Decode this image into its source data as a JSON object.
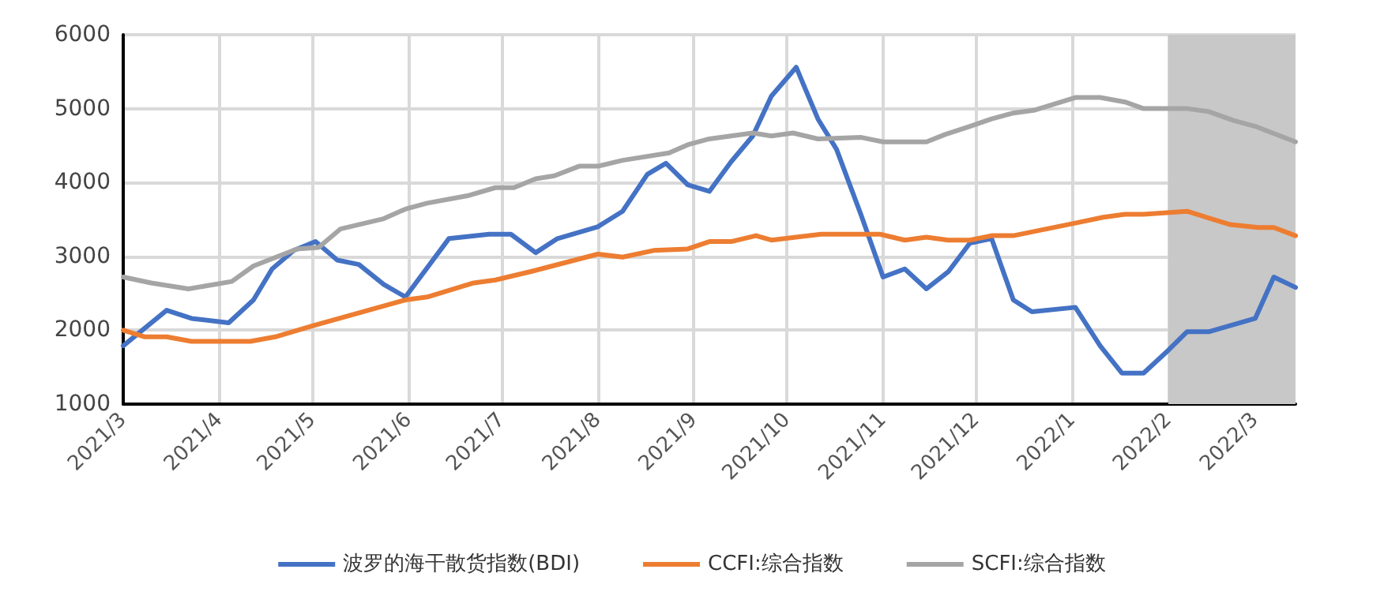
{
  "chart_data": {
    "type": "line",
    "xlim": [
      "2021-03-01",
      "2022-03-14"
    ],
    "ylim": [
      1000,
      6000
    ],
    "yticks": [
      1000,
      2000,
      3000,
      4000,
      5000,
      6000
    ],
    "xticks": [
      {
        "value": "2021-03-01",
        "label": "2021/3"
      },
      {
        "value": "2021-04-01",
        "label": "2021/4"
      },
      {
        "value": "2021-05-01",
        "label": "2021/5"
      },
      {
        "value": "2021-06-01",
        "label": "2021/6"
      },
      {
        "value": "2021-07-01",
        "label": "2021/7"
      },
      {
        "value": "2021-08-01",
        "label": "2021/8"
      },
      {
        "value": "2021-09-01",
        "label": "2021/9"
      },
      {
        "value": "2021-10-01",
        "label": "2021/10"
      },
      {
        "value": "2021-11-01",
        "label": "2021/11"
      },
      {
        "value": "2021-12-01",
        "label": "2021/12"
      },
      {
        "value": "2022-01-01",
        "label": "2022/1"
      },
      {
        "value": "2022-02-01",
        "label": "2022/2"
      },
      {
        "value": "2022-03-01",
        "label": "2022/3"
      }
    ],
    "grid": true,
    "legend": "bottom",
    "marker": "none",
    "line_style": "solid",
    "bands": [
      {
        "axis": "x",
        "from": "2022-02-01",
        "to": "2022-03-14",
        "color": "#c8c8c8"
      }
    ],
    "series": [
      {
        "name": "波罗的海干散货指数(BDI)",
        "color": "#4472c4",
        "x": [
          "2021-03-01",
          "2021-03-15",
          "2021-03-23",
          "2021-04-04",
          "2021-04-12",
          "2021-04-18",
          "2021-04-25",
          "2021-05-02",
          "2021-05-09",
          "2021-05-16",
          "2021-05-24",
          "2021-05-31",
          "2021-06-14",
          "2021-06-27",
          "2021-07-04",
          "2021-07-12",
          "2021-07-19",
          "2021-08-01",
          "2021-08-09",
          "2021-08-17",
          "2021-08-23",
          "2021-08-30",
          "2021-09-06",
          "2021-09-13",
          "2021-09-20",
          "2021-09-26",
          "2021-10-04",
          "2021-10-11",
          "2021-10-17",
          "2021-10-25",
          "2021-11-01",
          "2021-11-08",
          "2021-11-15",
          "2021-11-22",
          "2021-11-29",
          "2021-12-06",
          "2021-12-13",
          "2021-12-19",
          "2022-01-02",
          "2022-01-10",
          "2022-01-17",
          "2022-01-24",
          "2022-02-01",
          "2022-02-07",
          "2022-02-14",
          "2022-03-01",
          "2022-03-07",
          "2022-03-14"
        ],
        "values": [
          1790,
          2270,
          2160,
          2100,
          2410,
          2830,
          3080,
          3200,
          2950,
          2890,
          2620,
          2450,
          3240,
          3300,
          3300,
          3050,
          3240,
          3400,
          3610,
          4110,
          4260,
          3970,
          3880,
          4280,
          4630,
          5170,
          5560,
          4860,
          4450,
          3550,
          2720,
          2830,
          2560,
          2790,
          3180,
          3240,
          2410,
          2250,
          2310,
          1790,
          1420,
          1420,
          1730,
          1980,
          1980,
          2160,
          2720,
          2580
        ]
      },
      {
        "name": "CCFI:综合指数",
        "color": "#ed7d31",
        "x": [
          "2021-03-01",
          "2021-03-08",
          "2021-03-15",
          "2021-03-23",
          "2021-04-11",
          "2021-04-19",
          "2021-05-01",
          "2021-05-31",
          "2021-06-07",
          "2021-06-22",
          "2021-06-29",
          "2021-07-11",
          "2021-08-01",
          "2021-08-09",
          "2021-08-19",
          "2021-08-30",
          "2021-09-06",
          "2021-09-13",
          "2021-09-21",
          "2021-09-26",
          "2021-10-12",
          "2021-10-31",
          "2021-11-08",
          "2021-11-15",
          "2021-11-22",
          "2021-11-29",
          "2021-12-06",
          "2021-12-13",
          "2022-01-02",
          "2022-01-11",
          "2022-01-18",
          "2022-01-24",
          "2022-02-07",
          "2022-02-21",
          "2022-03-02",
          "2022-03-07",
          "2022-03-14"
        ],
        "values": [
          2000,
          1910,
          1910,
          1850,
          1850,
          1910,
          2060,
          2410,
          2450,
          2640,
          2680,
          2800,
          3030,
          2990,
          3080,
          3100,
          3200,
          3200,
          3280,
          3220,
          3300,
          3300,
          3220,
          3260,
          3220,
          3220,
          3280,
          3280,
          3450,
          3530,
          3570,
          3570,
          3610,
          3430,
          3390,
          3390,
          3280
        ]
      },
      {
        "name": "SCFI:综合指数",
        "color": "#a5a5a5",
        "x": [
          "2021-03-01",
          "2021-03-10",
          "2021-03-22",
          "2021-04-05",
          "2021-04-12",
          "2021-04-26",
          "2021-05-03",
          "2021-05-10",
          "2021-05-24",
          "2021-05-31",
          "2021-06-07",
          "2021-06-20",
          "2021-06-29",
          "2021-07-05",
          "2021-07-12",
          "2021-07-18",
          "2021-07-26",
          "2021-08-01",
          "2021-08-09",
          "2021-08-24",
          "2021-08-30",
          "2021-09-06",
          "2021-09-20",
          "2021-09-26",
          "2021-10-03",
          "2021-10-11",
          "2021-10-25",
          "2021-11-01",
          "2021-11-15",
          "2021-11-21",
          "2021-11-29",
          "2021-12-06",
          "2021-12-13",
          "2021-12-20",
          "2022-01-02",
          "2022-01-10",
          "2022-01-18",
          "2022-01-24",
          "2022-02-07",
          "2022-02-14",
          "2022-02-22",
          "2022-03-01",
          "2022-03-14"
        ],
        "values": [
          2720,
          2640,
          2560,
          2660,
          2870,
          3100,
          3120,
          3370,
          3510,
          3640,
          3720,
          3820,
          3930,
          3930,
          4050,
          4090,
          4220,
          4220,
          4300,
          4400,
          4510,
          4590,
          4670,
          4630,
          4670,
          4590,
          4610,
          4550,
          4550,
          4650,
          4760,
          4860,
          4940,
          4980,
          5150,
          5150,
          5090,
          5000,
          5000,
          4960,
          4840,
          4760,
          4550
        ]
      }
    ]
  }
}
